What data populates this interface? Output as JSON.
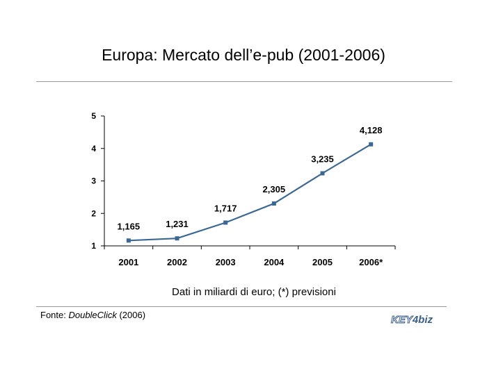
{
  "title": "Europa: Mercato dell’e-pub (2001-2006)",
  "caption": "Dati in miliardi di euro; (*) previsioni",
  "source": {
    "prefix": "Fonte: ",
    "name": "DoubleClick",
    "suffix": " (2006)"
  },
  "logo": {
    "part1": "KEY",
    "part2": "4biz"
  },
  "colors": {
    "series": "#3b6795",
    "axis": "#000000"
  },
  "chart_data": {
    "type": "line",
    "categories": [
      "2001",
      "2002",
      "2003",
      "2004",
      "2005",
      "2006*"
    ],
    "series": [
      {
        "values": [
          1.165,
          1.231,
          1.717,
          2.305,
          3.235,
          4.128
        ]
      }
    ],
    "data_labels": [
      "1,165",
      "1,231",
      "1,717",
      "2,305",
      "3,235",
      "4,128"
    ],
    "yticks": [
      1,
      2,
      3,
      4,
      5
    ],
    "ylim": [
      1,
      5
    ],
    "xlabel": "",
    "ylabel": "",
    "grid": false,
    "legend": "none"
  }
}
